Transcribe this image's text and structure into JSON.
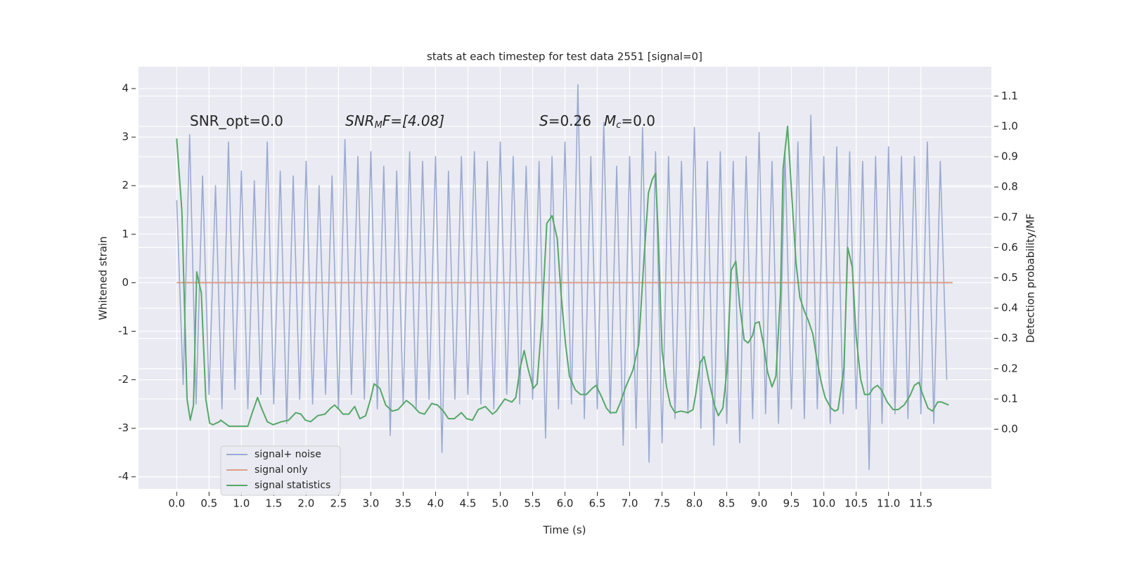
{
  "chart_data": {
    "type": "line",
    "title": "stats at each timestep for test data 2551 [signal=0]",
    "xlabel": "Time (s)",
    "ylabel": "Whitened strain",
    "y2label": "Detection probability/MF",
    "annotations": [
      [
        "SNR_opt=0.0"
      ],
      [
        "SNR",
        "M",
        "F=[4.08]"
      ],
      [
        "S",
        "=0.26"
      ],
      [
        "M",
        "c",
        "=0.0"
      ]
    ],
    "xlim": [
      -0.59,
      12.59
    ],
    "ylim": [
      -4.25,
      4.45
    ],
    "y2lim": [
      -0.197,
      1.197
    ],
    "xticks": [
      {
        "value": 0,
        "label": "0.0"
      },
      {
        "value": 0.5,
        "label": "0.5"
      },
      {
        "value": 1,
        "label": "1.0"
      },
      {
        "value": 1.5,
        "label": "1.5"
      },
      {
        "value": 2,
        "label": "2.0"
      },
      {
        "value": 2.5,
        "label": "2.5"
      },
      {
        "value": 3,
        "label": "3.0"
      },
      {
        "value": 3.5,
        "label": "3.5"
      },
      {
        "value": 4,
        "label": "4.0"
      },
      {
        "value": 4.5,
        "label": "4.5"
      },
      {
        "value": 5,
        "label": "5.0"
      },
      {
        "value": 5.5,
        "label": "5.5"
      },
      {
        "value": 6,
        "label": "6.0"
      },
      {
        "value": 6.5,
        "label": "6.5"
      },
      {
        "value": 7,
        "label": "7.0"
      },
      {
        "value": 7.5,
        "label": "7.5"
      },
      {
        "value": 8,
        "label": "8.0"
      },
      {
        "value": 8.5,
        "label": "8.5"
      },
      {
        "value": 9,
        "label": "9.0"
      },
      {
        "value": 9.5,
        "label": "9.5"
      },
      {
        "value": 10,
        "label": "10.0"
      },
      {
        "value": 10.5,
        "label": "10.5"
      },
      {
        "value": 11,
        "label": "11.0"
      },
      {
        "value": 11.5,
        "label": "11.5"
      }
    ],
    "yticks": [
      -4,
      -3,
      -2,
      -1,
      0,
      1,
      2,
      3,
      4
    ],
    "y2ticks": [
      {
        "value": 0,
        "label": "0.0"
      },
      {
        "value": 0.1,
        "label": "0.1"
      },
      {
        "value": 0.2,
        "label": "0.2"
      },
      {
        "value": 0.3,
        "label": "0.3"
      },
      {
        "value": 0.4,
        "label": "0.4"
      },
      {
        "value": 0.5,
        "label": "0.5"
      },
      {
        "value": 0.6,
        "label": "0.6"
      },
      {
        "value": 0.7,
        "label": "0.7"
      },
      {
        "value": 0.8,
        "label": "0.8"
      },
      {
        "value": 0.9,
        "label": "0.9"
      },
      {
        "value": 1,
        "label": "1.0"
      },
      {
        "value": 1.1,
        "label": "1.1"
      }
    ],
    "grid": true,
    "legend": "lower left",
    "series": [
      {
        "name": "signal+ noise",
        "color": "#9aabd1",
        "x": [
          0,
          0.1,
          0.2,
          0.3,
          0.4,
          0.5,
          0.6,
          0.7,
          0.8,
          0.9,
          1,
          1.1,
          1.2,
          1.3,
          1.4,
          1.5,
          1.6,
          1.7,
          1.8,
          1.9,
          2,
          2.1,
          2.2,
          2.3,
          2.4,
          2.5,
          2.6,
          2.7,
          2.8,
          2.9,
          3,
          3.1,
          3.2,
          3.3,
          3.4,
          3.5,
          3.6,
          3.7,
          3.8,
          3.9,
          4,
          4.1,
          4.2,
          4.3,
          4.4,
          4.5,
          4.6,
          4.7,
          4.8,
          4.9,
          5,
          5.1,
          5.2,
          5.3,
          5.4,
          5.5,
          5.6,
          5.7,
          5.8,
          5.9,
          6,
          6.1,
          6.2,
          6.3,
          6.4,
          6.5,
          6.6,
          6.7,
          6.8,
          6.9,
          7,
          7.1,
          7.2,
          7.3,
          7.4,
          7.5,
          7.6,
          7.7,
          7.8,
          7.9,
          8,
          8.1,
          8.2,
          8.3,
          8.4,
          8.5,
          8.6,
          8.7,
          8.8,
          8.9,
          9,
          9.1,
          9.2,
          9.3,
          9.4,
          9.5,
          9.6,
          9.7,
          9.8,
          9.9,
          10,
          10.1,
          10.2,
          10.3,
          10.4,
          10.5,
          10.6,
          10.7,
          10.8,
          10.9,
          11,
          11.1,
          11.2,
          11.3,
          11.4,
          11.5,
          11.6,
          11.7,
          11.8,
          11.9
        ],
        "values": [
          1.7,
          -2.1,
          3.05,
          -2.5,
          2.2,
          -2.3,
          2.0,
          -2.6,
          2.9,
          -2.2,
          2.3,
          -2.6,
          2.1,
          -2.3,
          2.9,
          -2.5,
          2.3,
          -2.9,
          2.2,
          -2.4,
          2.5,
          -2.5,
          2.0,
          -2.3,
          2.2,
          -2.6,
          2.95,
          -2.3,
          2.6,
          -2.4,
          2.7,
          -2.6,
          2.4,
          -3.15,
          2.3,
          -2.5,
          2.7,
          -2.6,
          2.5,
          -2.4,
          2.6,
          -3.5,
          2.3,
          -2.4,
          2.6,
          -2.3,
          2.7,
          -2.5,
          2.5,
          -2.6,
          2.9,
          -2.3,
          2.6,
          -2.5,
          2.4,
          -2.4,
          2.5,
          -3.2,
          2.6,
          -2.6,
          2.9,
          -2.5,
          4.08,
          -2.8,
          2.6,
          -2.6,
          3.3,
          -2.7,
          2.4,
          -3.35,
          2.6,
          -3.0,
          3.2,
          -3.7,
          2.7,
          -3.3,
          2.6,
          -2.8,
          2.5,
          -2.7,
          3.2,
          -3.0,
          2.5,
          -3.35,
          2.7,
          -2.9,
          2.5,
          -3.3,
          2.6,
          -2.8,
          3.1,
          -2.7,
          2.5,
          -2.9,
          2.7,
          -2.6,
          2.9,
          -2.8,
          3.45,
          -2.6,
          2.6,
          -2.9,
          2.8,
          -2.7,
          2.7,
          -2.6,
          2.5,
          -3.85,
          2.6,
          -2.9,
          2.8,
          -2.7,
          2.6,
          -2.8,
          2.6,
          -2.7,
          2.9,
          -2.9,
          2.5,
          -2.0
        ]
      },
      {
        "name": "signal only",
        "color": "#dd9f8a",
        "x": [
          0,
          11.99
        ],
        "values": [
          0,
          0
        ]
      },
      {
        "name": "signal statistics",
        "color": "#55a868",
        "axis": "y2",
        "x": [
          0,
          0.08,
          0.16,
          0.21,
          0.26,
          0.31,
          0.38,
          0.45,
          0.51,
          0.56,
          0.66,
          0.68,
          0.81,
          0.97,
          1.1,
          1.16,
          1.25,
          1.31,
          1.4,
          1.49,
          1.62,
          1.73,
          1.84,
          1.92,
          1.99,
          2.07,
          2.18,
          2.29,
          2.38,
          2.44,
          2.51,
          2.57,
          2.66,
          2.75,
          2.83,
          2.92,
          2.99,
          3.05,
          3.14,
          3.23,
          3.33,
          3.42,
          3.55,
          3.64,
          3.75,
          3.83,
          3.94,
          4.03,
          4.12,
          4.2,
          4.29,
          4.4,
          4.48,
          4.57,
          4.66,
          4.77,
          4.88,
          4.94,
          5.07,
          5.18,
          5.24,
          5.31,
          5.37,
          5.43,
          5.51,
          5.57,
          5.64,
          5.72,
          5.8,
          5.88,
          5.94,
          6.01,
          6.07,
          6.16,
          6.24,
          6.33,
          6.42,
          6.48,
          6.57,
          6.64,
          6.7,
          6.79,
          6.85,
          6.94,
          7.05,
          7.14,
          7.22,
          7.29,
          7.35,
          7.4,
          7.44,
          7.5,
          7.57,
          7.63,
          7.7,
          7.79,
          7.9,
          7.98,
          8.02,
          8.09,
          8.15,
          8.22,
          8.31,
          8.37,
          8.44,
          8.5,
          8.57,
          8.64,
          8.7,
          8.77,
          8.83,
          8.9,
          8.94,
          9,
          9.07,
          9.13,
          9.2,
          9.26,
          9.33,
          9.37,
          9.44,
          9.5,
          9.57,
          9.63,
          9.7,
          9.76,
          9.83,
          9.89,
          9.96,
          10.02,
          10.11,
          10.17,
          10.22,
          10.31,
          10.37,
          10.44,
          10.5,
          10.57,
          10.63,
          10.7,
          10.76,
          10.83,
          10.89,
          10.98,
          11.07,
          11.15,
          11.24,
          11.33,
          11.4,
          11.47,
          11.52,
          11.61,
          11.68,
          11.76,
          11.82,
          11.93
        ],
        "values": [
          0.96,
          0.72,
          0.1,
          0.03,
          0.08,
          0.52,
          0.45,
          0.1,
          0.02,
          0.015,
          0.025,
          0.03,
          0.01,
          0.01,
          0.01,
          0.05,
          0.105,
          0.07,
          0.025,
          0.015,
          0.025,
          0.03,
          0.055,
          0.05,
          0.03,
          0.025,
          0.045,
          0.05,
          0.07,
          0.08,
          0.065,
          0.05,
          0.05,
          0.075,
          0.035,
          0.045,
          0.095,
          0.15,
          0.135,
          0.08,
          0.06,
          0.065,
          0.095,
          0.08,
          0.055,
          0.05,
          0.085,
          0.08,
          0.06,
          0.035,
          0.035,
          0.055,
          0.035,
          0.03,
          0.065,
          0.075,
          0.05,
          0.06,
          0.1,
          0.09,
          0.105,
          0.205,
          0.26,
          0.2,
          0.135,
          0.15,
          0.35,
          0.68,
          0.705,
          0.63,
          0.445,
          0.28,
          0.175,
          0.13,
          0.115,
          0.115,
          0.135,
          0.145,
          0.105,
          0.07,
          0.055,
          0.055,
          0.085,
          0.14,
          0.195,
          0.28,
          0.56,
          0.78,
          0.825,
          0.845,
          0.65,
          0.26,
          0.14,
          0.08,
          0.055,
          0.06,
          0.055,
          0.065,
          0.115,
          0.22,
          0.24,
          0.165,
          0.08,
          0.045,
          0.07,
          0.19,
          0.525,
          0.555,
          0.41,
          0.295,
          0.285,
          0.31,
          0.35,
          0.355,
          0.28,
          0.19,
          0.14,
          0.175,
          0.445,
          0.86,
          1.0,
          0.79,
          0.55,
          0.435,
          0.39,
          0.36,
          0.315,
          0.235,
          0.155,
          0.105,
          0.07,
          0.06,
          0.065,
          0.2,
          0.6,
          0.535,
          0.305,
          0.165,
          0.115,
          0.115,
          0.135,
          0.145,
          0.13,
          0.09,
          0.065,
          0.065,
          0.08,
          0.11,
          0.145,
          0.155,
          0.12,
          0.07,
          0.06,
          0.09,
          0.09,
          0.08
        ]
      }
    ]
  }
}
